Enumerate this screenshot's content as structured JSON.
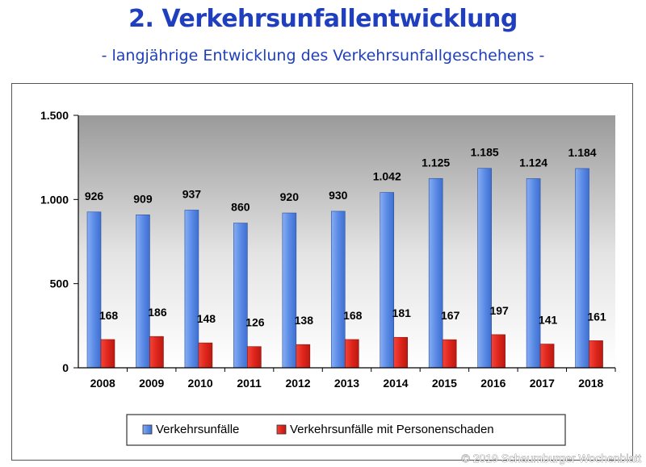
{
  "header": {
    "title": "2. Verkehrsunfallentwicklung",
    "subtitle": "- langjährige Entwicklung des Verkehrsunfallgeschehens -"
  },
  "watermark": "© 2019 Schaumburger Wochenblatt",
  "colors": {
    "series1": "#5b8be6",
    "series2": "#e0251b",
    "title": "#1f3fbf"
  },
  "chart_data": {
    "type": "bar",
    "categories": [
      "2008",
      "2009",
      "2010",
      "2011",
      "2012",
      "2013",
      "2014",
      "2015",
      "2016",
      "2017",
      "2018"
    ],
    "series": [
      {
        "name": "Verkehrsunfälle",
        "values": [
          926,
          909,
          937,
          860,
          920,
          930,
          1042,
          1125,
          1185,
          1124,
          1184
        ],
        "labels": [
          "926",
          "909",
          "937",
          "860",
          "920",
          "930",
          "1.042",
          "1.125",
          "1.185",
          "1.124",
          "1.184"
        ]
      },
      {
        "name": "Verkehrsunfälle mit Personenschaden",
        "values": [
          168,
          186,
          148,
          126,
          138,
          168,
          181,
          167,
          197,
          141,
          161
        ],
        "labels": [
          "168",
          "186",
          "148",
          "126",
          "138",
          "168",
          "181",
          "167",
          "197",
          "141",
          "161"
        ]
      }
    ],
    "ylim": [
      0,
      1500
    ],
    "yticks": [
      0,
      500,
      1000,
      1500
    ],
    "ytick_labels": [
      "0",
      "500",
      "1.000",
      "1.500"
    ],
    "grid": false,
    "legend": "bottom-center",
    "background": "gradient grey-to-white"
  }
}
